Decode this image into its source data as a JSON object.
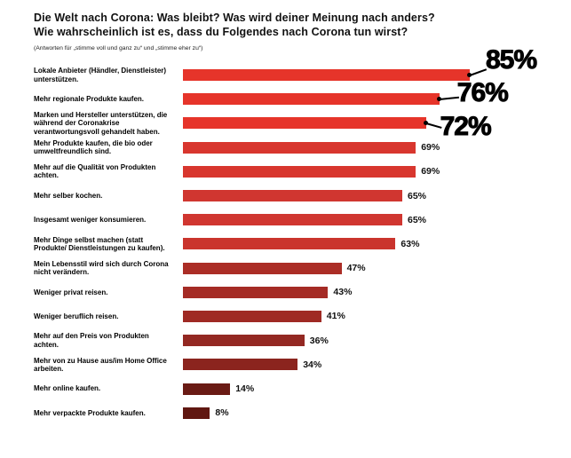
{
  "chart_data": {
    "type": "bar",
    "orientation": "horizontal",
    "title": "Die Welt nach Corona: Was bleibt? Was wird deiner Meinung nach anders? Wie wahrscheinlich ist es, dass du Folgendes nach Corona tun wirst?",
    "title_lines": [
      "Die Welt nach Corona: Was bleibt? Was wird deiner Meinung nach anders?",
      "Wie wahrscheinlich ist es, dass du Folgendes nach Corona tun wirst?"
    ],
    "subtitle": "(Antworten für „stimme voll und ganz zu“ und „stimme eher zu“)",
    "categories": [
      "Lokale Anbieter (Händler, Dienstleister) unterstützen.",
      "Mehr regionale Produkte kaufen.",
      "Marken und Hersteller unterstützen, die während der Coronakrise verantwortungsvoll gehandelt haben.",
      "Mehr Produkte kaufen, die bio oder umweltfreundlich sind.",
      "Mehr auf die Qualität von Produkten achten.",
      "Mehr selber kochen.",
      "Insgesamt weniger konsumieren.",
      "Mehr Dinge selbst machen (statt Produkte/ Dienstleistungen zu kaufen).",
      "Mein Lebensstil wird sich durch Corona nicht verändern.",
      "Weniger privat reisen.",
      "Weniger beruflich reisen.",
      "Mehr auf den Preis von Produkten achten.",
      "Mehr von zu Hause aus/im Home Office arbeiten.",
      "Mehr online kaufen.",
      "Mehr verpackte Produkte kaufen."
    ],
    "values": [
      85,
      76,
      72,
      69,
      69,
      65,
      65,
      63,
      47,
      43,
      41,
      36,
      34,
      14,
      8
    ],
    "value_suffix": "%",
    "bar_colors": [
      "#e6342a",
      "#e6342a",
      "#e6342a",
      "#d8362e",
      "#d8362e",
      "#d03630",
      "#d03630",
      "#ca342d",
      "#ab2d26",
      "#a52b25",
      "#9f2a24",
      "#932822",
      "#8b241e",
      "#6a1b15",
      "#601711"
    ],
    "highlighted_indexes": [
      0,
      1,
      2
    ],
    "xlim": [
      0,
      100
    ],
    "grid": false,
    "legend": "none",
    "axis_labels": "none"
  }
}
